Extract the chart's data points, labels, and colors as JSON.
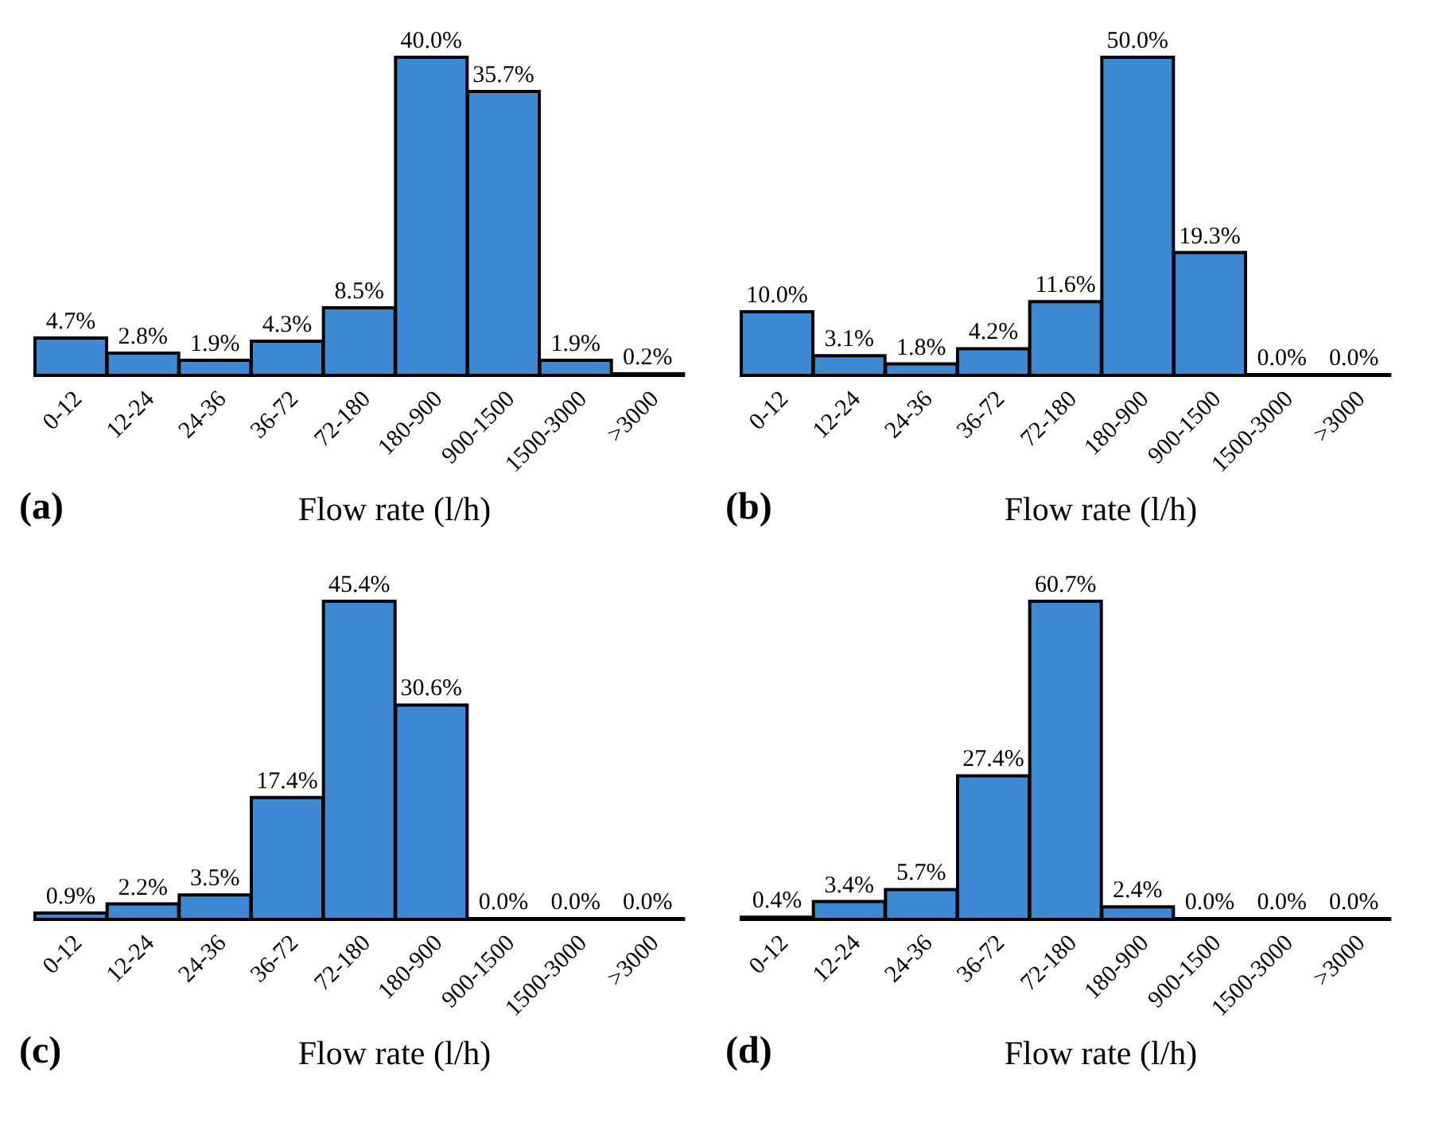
{
  "chart_data": [
    {
      "type": "bar",
      "xlabel": "Flow rate (l/h)",
      "annotations": [
        "(a)"
      ],
      "categories": [
        "0-12",
        "12-24",
        "24-36",
        "36-72",
        "72-180",
        "180-900",
        "900-1500",
        "1500-3000",
        ">3000"
      ],
      "values": [
        4.7,
        2.8,
        1.9,
        4.3,
        8.5,
        40.0,
        35.7,
        1.9,
        0.2
      ],
      "value_labels": [
        "4.7%",
        "2.8%",
        "1.9%",
        "4.3%",
        "8.5%",
        "40.0%",
        "35.7%",
        "1.9%",
        "0.2%"
      ],
      "color": "#3d89d3",
      "tick_labels": "x"
    },
    {
      "type": "bar",
      "xlabel": "Flow rate (l/h)",
      "annotations": [
        "(b)"
      ],
      "categories": [
        "0-12",
        "12-24",
        "24-36",
        "36-72",
        "72-180",
        "180-900",
        "900-1500",
        "1500-3000",
        ">3000"
      ],
      "values": [
        10.0,
        3.1,
        1.8,
        4.2,
        11.6,
        50.0,
        19.3,
        0.0,
        0.0
      ],
      "value_labels": [
        "10.0%",
        "3.1%",
        "1.8%",
        "4.2%",
        "11.6%",
        "50.0%",
        "19.3%",
        "0.0%",
        "0.0%"
      ],
      "color": "#3d89d3",
      "tick_labels": "x"
    },
    {
      "type": "bar",
      "xlabel": "Flow rate (l/h)",
      "annotations": [
        "(c)"
      ],
      "categories": [
        "0-12",
        "12-24",
        "24-36",
        "36-72",
        "72-180",
        "180-900",
        "900-1500",
        "1500-3000",
        ">3000"
      ],
      "values": [
        0.9,
        2.2,
        3.5,
        17.4,
        45.4,
        30.6,
        0.0,
        0.0,
        0.0
      ],
      "value_labels": [
        "0.9%",
        "2.2%",
        "3.5%",
        "17.4%",
        "45.4%",
        "30.6%",
        "0.0%",
        "0.0%",
        "0.0%"
      ],
      "color": "#3d89d3",
      "tick_labels": "x"
    },
    {
      "type": "bar",
      "xlabel": "Flow rate (l/h)",
      "annotations": [
        "(d)"
      ],
      "categories": [
        "0-12",
        "12-24",
        "24-36",
        "36-72",
        "72-180",
        "180-900",
        "900-1500",
        "1500-3000",
        ">3000"
      ],
      "values": [
        0.4,
        3.4,
        5.7,
        27.4,
        60.7,
        2.4,
        0.0,
        0.0,
        0.0
      ],
      "value_labels": [
        "0.4%",
        "3.4%",
        "5.7%",
        "27.4%",
        "60.7%",
        "2.4%",
        "0.0%",
        "0.0%",
        "0.0%"
      ],
      "color": "#3d89d3",
      "tick_labels": "x"
    }
  ]
}
